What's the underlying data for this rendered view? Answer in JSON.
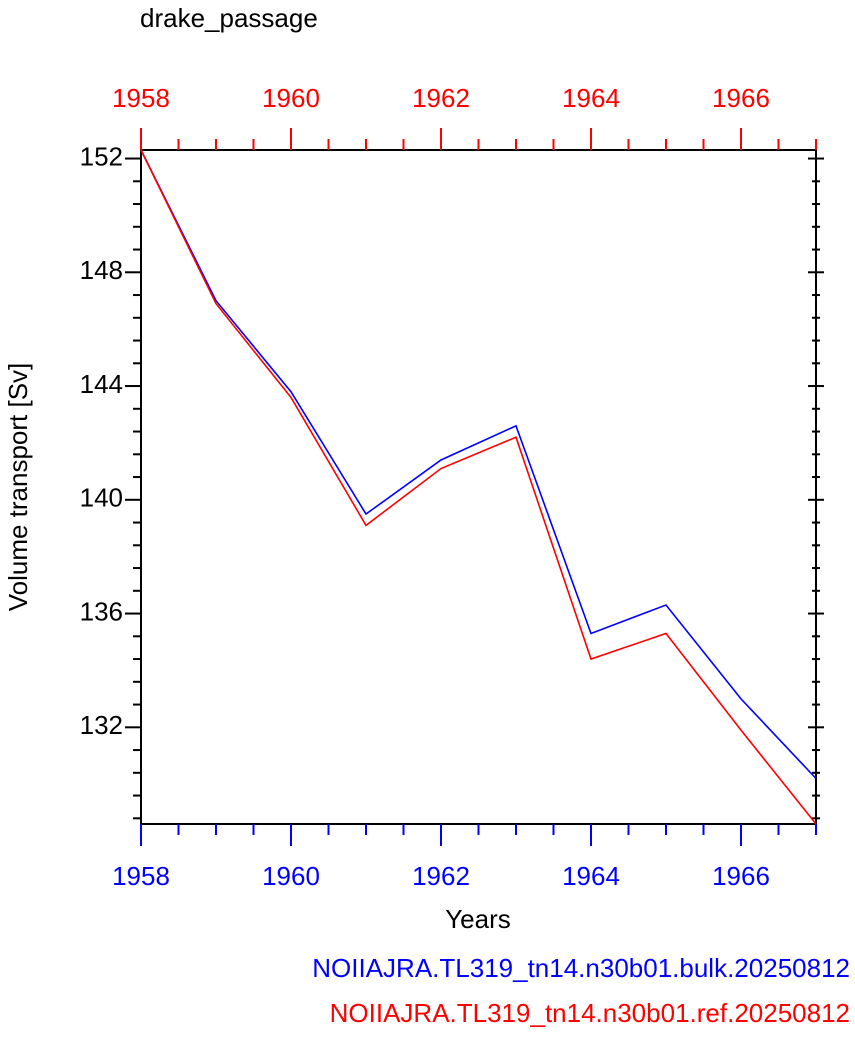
{
  "chart_data": {
    "type": "line",
    "title": "drake_passage",
    "x_label": "Years",
    "y_label": "Volume transport [Sv]",
    "x": [
      1958,
      1959,
      1960,
      1961,
      1962,
      1963,
      1964,
      1965,
      1966,
      1967
    ],
    "series": [
      {
        "name": "NOIIAJRA.TL319_tn14.n30b01.bulk.20250812",
        "color": "#0000ff",
        "values": [
          152.3,
          147.0,
          143.8,
          139.5,
          141.4,
          142.6,
          135.3,
          136.3,
          133.0,
          130.2
        ]
      },
      {
        "name": "NOIIAJRA.TL319_tn14.n30b01.ref.20250812",
        "color": "#ff0000",
        "values": [
          152.3,
          146.9,
          143.6,
          139.1,
          141.1,
          142.2,
          134.4,
          135.3,
          131.9,
          128.6
        ]
      }
    ],
    "xlim": [
      1958,
      1967
    ],
    "xticks": [
      1958,
      1960,
      1962,
      1964,
      1966
    ],
    "xminorticks": [
      1958.5,
      1959,
      1959.5,
      1960.5,
      1961,
      1961.5,
      1962.5,
      1963,
      1963.5,
      1964.5,
      1965,
      1965.5,
      1966.5,
      1967
    ],
    "x_axis_color": "#0000ff",
    "x2lim": [
      1958,
      1967
    ],
    "x2ticks": [
      1958,
      1960,
      1962,
      1964,
      1966
    ],
    "x2_axis_color": "#ff0000",
    "ylim": [
      128.6,
      152.3
    ],
    "yticks": [
      132,
      136,
      140,
      144,
      148,
      152
    ],
    "yminorticks": [
      128.8,
      129.6,
      130.4,
      131.2,
      132.8,
      133.6,
      134.4,
      135.2,
      136.8,
      137.6,
      138.4,
      139.2,
      140.8,
      141.6,
      142.4,
      143.2,
      144.8,
      145.6,
      146.4,
      147.2,
      148.8,
      149.6,
      150.4,
      151.2
    ],
    "grid": false
  }
}
